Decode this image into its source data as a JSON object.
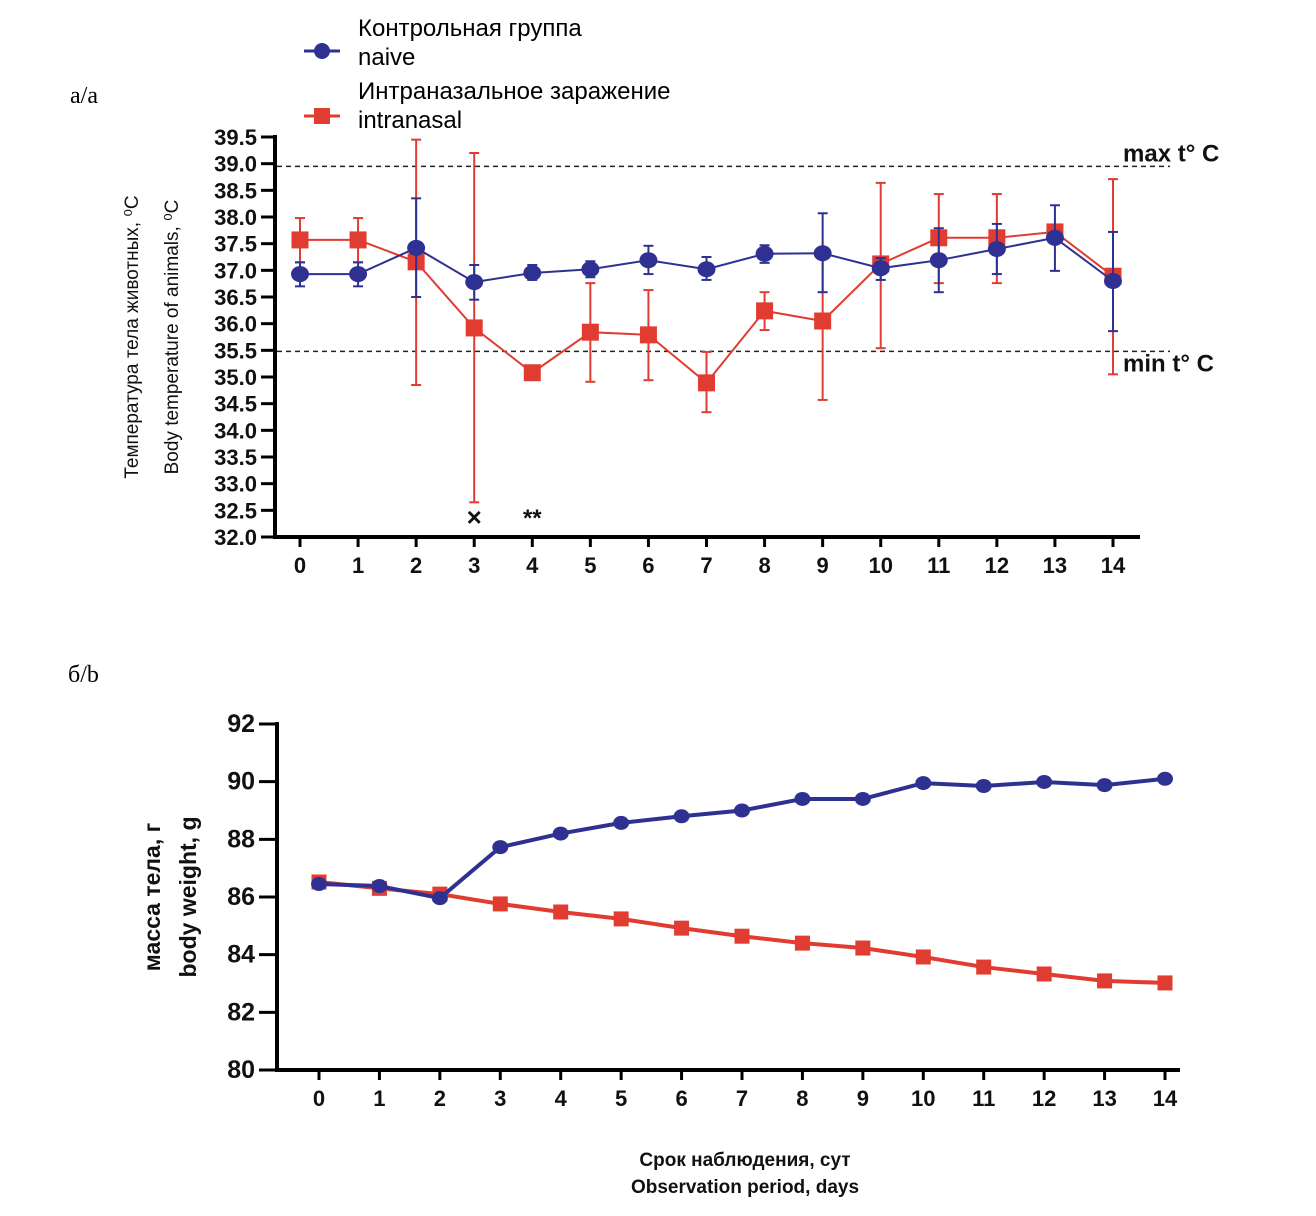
{
  "panels": {
    "a_label": "a/a",
    "b_label": "б/b"
  },
  "colors": {
    "naive": "#2e3192",
    "intranasal": "#e03c31",
    "axis": "#000000"
  },
  "legend": [
    {
      "series": "naive",
      "line1": "Контрольная группа",
      "line2": "naive",
      "marker": "circle"
    },
    {
      "series": "intranasal",
      "line1": "Интраназальное заражение",
      "line2": "intranasal",
      "marker": "square"
    }
  ],
  "chart_data": [
    {
      "id": "temperature",
      "type": "line",
      "title": "",
      "ylabel_ru": "Температура тела животных, ⁰C",
      "ylabel_en": "Body temperature of animals, ⁰C",
      "xlabel": "",
      "x": [
        0,
        1,
        2,
        3,
        4,
        5,
        6,
        7,
        8,
        9,
        10,
        11,
        12,
        13,
        14
      ],
      "ylim": [
        32.0,
        39.5
      ],
      "yticks": [
        "32.0",
        "32.5",
        "33.0",
        "33.5",
        "34.0",
        "34.5",
        "35.0",
        "35.5",
        "36.0",
        "36.5",
        "37.0",
        "37.5",
        "38.0",
        "38.5",
        "39.0",
        "39.5"
      ],
      "grid": false,
      "error_bars": true,
      "series": [
        {
          "name": "naive",
          "marker": "circle",
          "values": [
            36.93,
            36.93,
            37.42,
            36.78,
            36.95,
            37.02,
            37.19,
            37.02,
            37.31,
            37.32,
            37.04,
            37.19,
            37.4,
            37.61,
            36.8
          ],
          "err_high": [
            37.15,
            37.15,
            38.35,
            37.1,
            37.1,
            37.17,
            37.46,
            37.25,
            37.47,
            38.07,
            37.23,
            37.79,
            37.87,
            38.22,
            37.72
          ],
          "err_low": [
            36.7,
            36.7,
            36.5,
            36.45,
            36.82,
            36.87,
            36.93,
            36.82,
            37.14,
            36.59,
            36.82,
            36.59,
            36.93,
            36.99,
            35.86
          ]
        },
        {
          "name": "intranasal",
          "marker": "square",
          "values": [
            37.57,
            37.57,
            37.16,
            35.92,
            35.08,
            35.84,
            35.79,
            34.89,
            36.24,
            36.05,
            37.12,
            37.61,
            37.61,
            37.72,
            36.89
          ],
          "err_high": [
            37.98,
            37.98,
            39.45,
            39.2,
            35.18,
            36.76,
            36.63,
            35.47,
            36.59,
            37.34,
            38.64,
            38.43,
            38.43,
            37.8,
            38.71
          ],
          "err_low": [
            37.15,
            37.15,
            34.85,
            32.65,
            34.98,
            34.91,
            34.94,
            34.34,
            35.88,
            34.57,
            35.54,
            36.76,
            36.76,
            37.64,
            35.05
          ]
        }
      ],
      "reference_lines": [
        {
          "value": 38.95,
          "label": "max t° C"
        },
        {
          "value": 35.48,
          "label": "min t° C"
        }
      ],
      "annotations": [
        {
          "x": 3,
          "text": "×"
        },
        {
          "x": 4,
          "text": "**"
        }
      ]
    },
    {
      "id": "body_weight",
      "type": "line",
      "title": "",
      "ylabel_ru": "масса тела, г",
      "ylabel_en": "body weight, g",
      "xlabel_ru": "Срок наблюдения, сут",
      "xlabel_en": "Observation period, days",
      "x": [
        0,
        1,
        2,
        3,
        4,
        5,
        6,
        7,
        8,
        9,
        10,
        11,
        12,
        13,
        14
      ],
      "ylim": [
        80,
        92
      ],
      "yticks": [
        "80",
        "82",
        "84",
        "86",
        "88",
        "90",
        "92"
      ],
      "grid": false,
      "series": [
        {
          "name": "naive",
          "marker": "circle",
          "values": [
            86.45,
            86.38,
            85.96,
            87.73,
            88.2,
            88.57,
            88.8,
            89.0,
            89.4,
            89.4,
            89.95,
            89.85,
            89.99,
            89.88,
            90.1
          ]
        },
        {
          "name": "intranasal",
          "marker": "square",
          "values": [
            86.52,
            86.3,
            86.1,
            85.76,
            85.48,
            85.24,
            84.92,
            84.64,
            84.4,
            84.23,
            83.92,
            83.57,
            83.33,
            83.09,
            83.02
          ]
        }
      ]
    }
  ]
}
